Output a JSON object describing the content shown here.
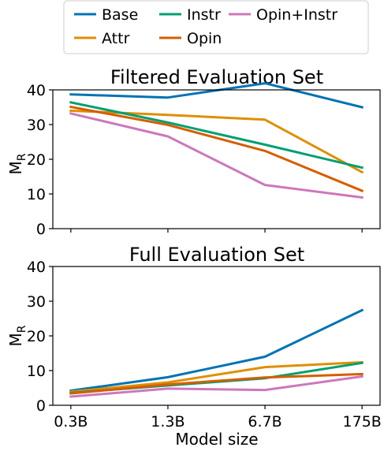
{
  "legend": {
    "placement": "top-center",
    "entries": [
      {
        "label": "Base",
        "color": "#0173b2"
      },
      {
        "label": "Attr",
        "color": "#de8f05"
      },
      {
        "label": "Instr",
        "color": "#029e73"
      },
      {
        "label": "Opin",
        "color": "#d55e00"
      },
      {
        "label": "Opin+Instr",
        "color": "#cc78bc"
      }
    ]
  },
  "xlabel": "Model size",
  "chart_data": [
    {
      "type": "line",
      "title": "Filtered Evaluation Set",
      "ylabel": "M_R",
      "ylim": [
        0,
        40
      ],
      "yticks": [
        "0",
        "10",
        "20",
        "30",
        "40"
      ],
      "categories": [
        "0.3B",
        "1.3B",
        "6.7B",
        "175B"
      ],
      "show_xticklabels": false,
      "grid": false,
      "series": [
        {
          "name": "Base",
          "color": "#0173b2",
          "values": [
            38.7,
            37.8,
            41.9,
            35.0
          ]
        },
        {
          "name": "Attr",
          "color": "#de8f05",
          "values": [
            34.0,
            32.8,
            31.4,
            16.3
          ]
        },
        {
          "name": "Instr",
          "color": "#029e73",
          "values": [
            36.4,
            30.6,
            24.2,
            17.6
          ]
        },
        {
          "name": "Opin",
          "color": "#d55e00",
          "values": [
            35.1,
            29.9,
            22.4,
            10.9
          ]
        },
        {
          "name": "Opin+Instr",
          "color": "#cc78bc",
          "values": [
            33.2,
            26.6,
            12.6,
            9.0
          ]
        }
      ]
    },
    {
      "type": "line",
      "title": "Full Evaluation Set",
      "ylabel": "M_R",
      "ylim": [
        0,
        40
      ],
      "yticks": [
        "0",
        "10",
        "20",
        "30",
        "40"
      ],
      "categories": [
        "0.3B",
        "1.3B",
        "6.7B",
        "175B"
      ],
      "show_xticklabels": true,
      "grid": false,
      "series": [
        {
          "name": "Base",
          "color": "#0173b2",
          "values": [
            4.2,
            8.1,
            14.0,
            27.4
          ]
        },
        {
          "name": "Attr",
          "color": "#de8f05",
          "values": [
            3.9,
            6.6,
            11.0,
            12.4
          ]
        },
        {
          "name": "Instr",
          "color": "#029e73",
          "values": [
            3.6,
            5.7,
            7.8,
            12.2
          ]
        },
        {
          "name": "Opin",
          "color": "#d55e00",
          "values": [
            3.4,
            6.0,
            8.0,
            9.0
          ]
        },
        {
          "name": "Opin+Instr",
          "color": "#cc78bc",
          "values": [
            2.5,
            4.8,
            4.4,
            8.3
          ]
        }
      ]
    }
  ]
}
